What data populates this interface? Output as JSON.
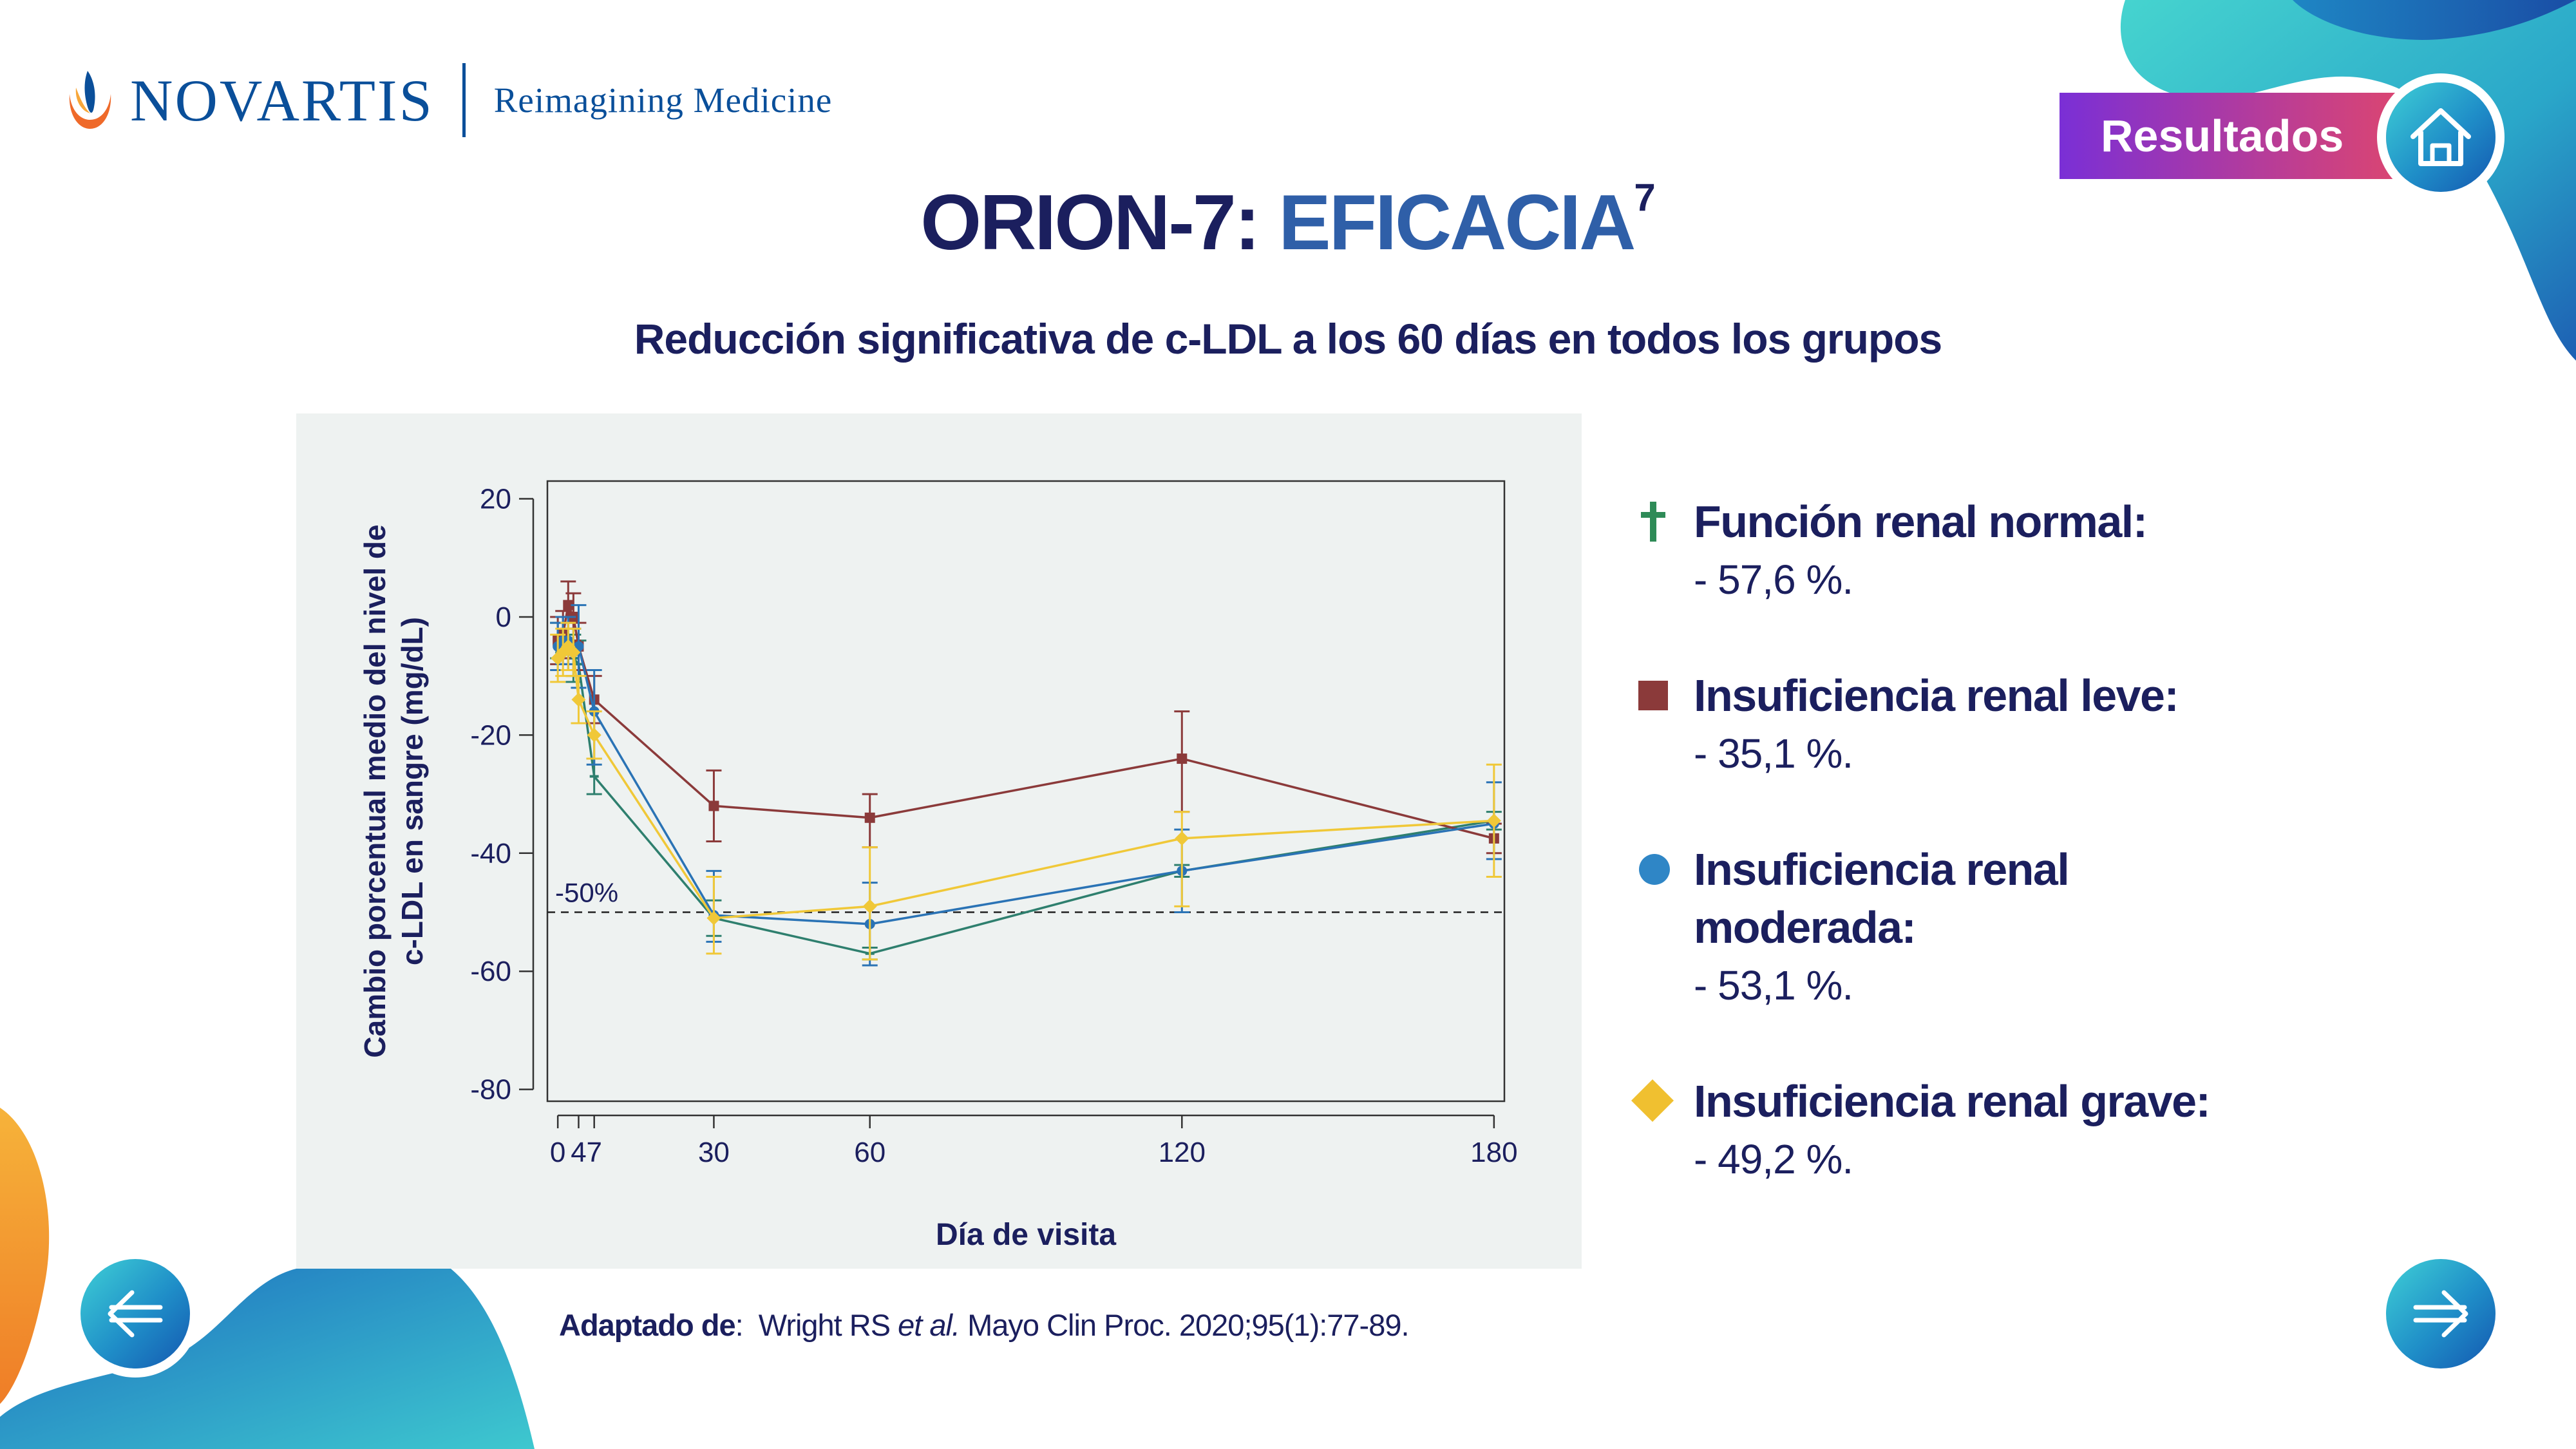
{
  "brand": {
    "name": "NOVARTIS",
    "tagline": "Reimagining Medicine"
  },
  "nav": {
    "section_label": "Resultados",
    "home_icon": "home-icon",
    "prev_icon": "arrow-left-icon",
    "next_icon": "arrow-right-icon"
  },
  "header": {
    "title_part1": "ORION-7: ",
    "title_part2": "EFICACIA",
    "title_sup": "7",
    "subtitle": "Reducción significativa de c-LDL a los 60 días en todos los grupos"
  },
  "chart_data": {
    "type": "line",
    "title": "",
    "xlabel": "Día de visita",
    "ylabel_line1": "Cambio porcentual medio del nivel de",
    "ylabel_line2": "c-LDL en sangre (mg/dL)",
    "xlim": [
      -2,
      182
    ],
    "ylim": [
      -82,
      23
    ],
    "x_ticks": [
      0,
      4,
      7,
      30,
      60,
      120,
      180
    ],
    "x_tick_labels": [
      "0",
      "4",
      "7",
      "30",
      "60",
      "120",
      "180"
    ],
    "y_ticks": [
      20,
      0,
      -20,
      -40,
      -60,
      -80
    ],
    "y_tick_labels": [
      "20",
      "0",
      "-20",
      "-40",
      "-60",
      "-80"
    ],
    "reference_line": {
      "y": -50,
      "label": "-50%"
    },
    "grid": false,
    "series": [
      {
        "name": "Función renal normal",
        "color": "#2e7f6e",
        "marker": "dagger",
        "points": [
          {
            "x": 0,
            "y": -4,
            "lo": -7,
            "hi": -1
          },
          {
            "x": 1,
            "y": -3,
            "lo": -6,
            "hi": 0
          },
          {
            "x": 2,
            "y": -5,
            "lo": -9,
            "hi": -1
          },
          {
            "x": 3,
            "y": -7,
            "lo": -11,
            "hi": -3
          },
          {
            "x": 4,
            "y": -8,
            "lo": -12,
            "hi": -4
          },
          {
            "x": 7,
            "y": -27,
            "lo": -30,
            "hi": -24
          },
          {
            "x": 30,
            "y": -51,
            "lo": -54,
            "hi": -48
          },
          {
            "x": 60,
            "y": -57,
            "lo": -58,
            "hi": -56
          },
          {
            "x": 120,
            "y": -43,
            "lo": -44,
            "hi": -42
          },
          {
            "x": 180,
            "y": -34.5,
            "lo": -36,
            "hi": -33
          }
        ]
      },
      {
        "name": "Insuficiencia renal leve",
        "color": "#8b3a3a",
        "marker": "square",
        "points": [
          {
            "x": 0,
            "y": -4,
            "lo": -8,
            "hi": 0
          },
          {
            "x": 1,
            "y": -3,
            "lo": -7,
            "hi": 1
          },
          {
            "x": 2,
            "y": 2,
            "lo": -2,
            "hi": 6
          },
          {
            "x": 3,
            "y": 0,
            "lo": -4,
            "hi": 4
          },
          {
            "x": 4,
            "y": -5,
            "lo": -9,
            "hi": -1
          },
          {
            "x": 7,
            "y": -14,
            "lo": -18,
            "hi": -10
          },
          {
            "x": 30,
            "y": -32,
            "lo": -38,
            "hi": -26
          },
          {
            "x": 60,
            "y": -34,
            "lo": -39,
            "hi": -30
          },
          {
            "x": 120,
            "y": -24,
            "lo": -33,
            "hi": -16
          },
          {
            "x": 180,
            "y": -37.5,
            "lo": -40,
            "hi": -35
          }
        ]
      },
      {
        "name": "Insuficiencia renal moderada",
        "color": "#2a73b5",
        "marker": "circle",
        "points": [
          {
            "x": 0,
            "y": -5,
            "lo": -9,
            "hi": -1
          },
          {
            "x": 1,
            "y": -4,
            "lo": -8,
            "hi": 0
          },
          {
            "x": 2,
            "y": -4,
            "lo": -8,
            "hi": 0
          },
          {
            "x": 3,
            "y": -6,
            "lo": -10,
            "hi": -2
          },
          {
            "x": 4,
            "y": -5,
            "lo": -12,
            "hi": 2
          },
          {
            "x": 7,
            "y": -16,
            "lo": -25,
            "hi": -9
          },
          {
            "x": 30,
            "y": -50.5,
            "lo": -55,
            "hi": -43
          },
          {
            "x": 60,
            "y": -52,
            "lo": -59,
            "hi": -45
          },
          {
            "x": 120,
            "y": -43,
            "lo": -50,
            "hi": -36
          },
          {
            "x": 180,
            "y": -35,
            "lo": -41,
            "hi": -28
          }
        ]
      },
      {
        "name": "Insuficiencia renal grave",
        "color": "#f0c838",
        "marker": "diamond",
        "points": [
          {
            "x": 0,
            "y": -7,
            "lo": -11,
            "hi": -3
          },
          {
            "x": 1,
            "y": -6,
            "lo": -10,
            "hi": -2
          },
          {
            "x": 2,
            "y": -5,
            "lo": -9,
            "hi": -1
          },
          {
            "x": 3,
            "y": -6,
            "lo": -10,
            "hi": -2
          },
          {
            "x": 4,
            "y": -14,
            "lo": -18,
            "hi": -10
          },
          {
            "x": 7,
            "y": -20,
            "lo": -24,
            "hi": -16
          },
          {
            "x": 30,
            "y": -51,
            "lo": -57,
            "hi": -44
          },
          {
            "x": 60,
            "y": -49,
            "lo": -58,
            "hi": -39
          },
          {
            "x": 120,
            "y": -37.5,
            "lo": -49,
            "hi": -33
          },
          {
            "x": 180,
            "y": -34.5,
            "lo": -44,
            "hi": -25
          }
        ]
      }
    ]
  },
  "legend": [
    {
      "marker": "dagger",
      "color": "#2e8b57",
      "label": "Función renal normal:",
      "value": "- 57,6 %."
    },
    {
      "marker": "square",
      "color": "#8b3a3a",
      "label": "Insuficiencia renal leve:",
      "value": "- 35,1 %."
    },
    {
      "marker": "circle",
      "color": "#2f86c6",
      "label": "Insuficiencia renal moderada:",
      "value": "- 53,1 %."
    },
    {
      "marker": "diamond",
      "color": "#f0c030",
      "label": "Insuficiencia renal grave:",
      "value": "- 49,2 %."
    }
  ],
  "footnote": {
    "prefix": "Adaptado de",
    "colon": ":",
    "text_before": "  Wright RS ",
    "italic": "et al.",
    "text_after": " Mayo Clin Proc. 2020;95(1):77-89."
  },
  "colors": {
    "navy": "#1b1f5e",
    "blue": "#2f5fa8",
    "teal": "#3fc6cc",
    "orange": "#f39a2b"
  }
}
